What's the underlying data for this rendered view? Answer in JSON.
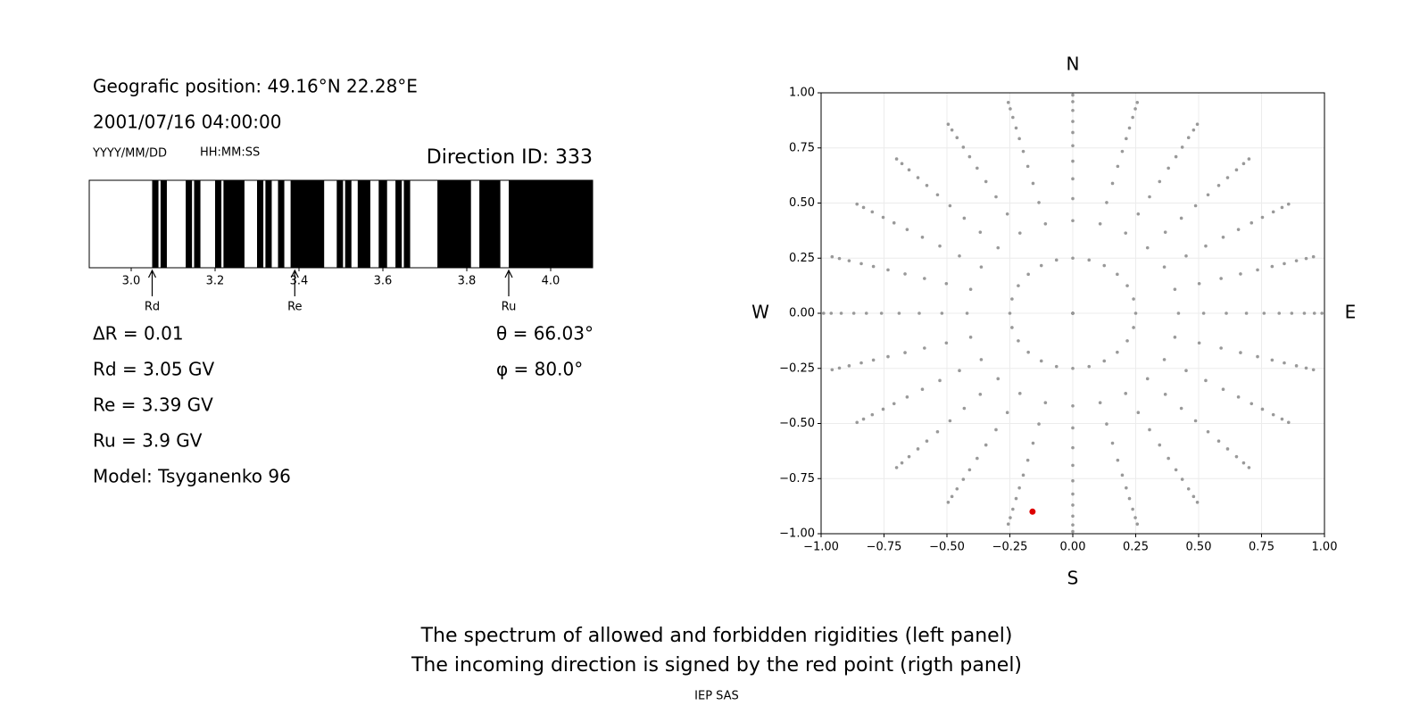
{
  "chart_data": [
    {
      "type": "spectrum",
      "info": [
        "Geografic position: 49.16°N 22.28°E",
        "2001/07/16 04:00:00"
      ],
      "format_labels": [
        "YYYY/MM/DD",
        "HH:MM:SS"
      ],
      "direction": "Direction ID: 333",
      "params_left": [
        "ΔR = 0.01",
        "Rd = 3.05 GV",
        "Re = 3.39 GV",
        "Ru = 3.9 GV",
        "Model: Tsyganenko 96"
      ],
      "params_right": [
        "θ = 66.03°",
        "φ = 80.0°"
      ],
      "xlim": [
        2.9,
        4.1
      ],
      "xticks": [
        {
          "value": 3,
          "label": "3.0"
        },
        {
          "value": 3.2,
          "label": "3.2"
        },
        {
          "value": 3.4,
          "label": "3.4"
        },
        {
          "value": 3.6,
          "label": "3.6"
        },
        {
          "value": 3.8,
          "label": "3.8"
        },
        {
          "value": 4,
          "label": "4.0"
        }
      ],
      "color": "#000000",
      "forbidden": [
        [
          3.05,
          3.065
        ],
        [
          3.07,
          3.085
        ],
        [
          3.13,
          3.145
        ],
        [
          3.15,
          3.165
        ],
        [
          3.2,
          3.215
        ],
        [
          3.22,
          3.27
        ],
        [
          3.3,
          3.315
        ],
        [
          3.32,
          3.335
        ],
        [
          3.35,
          3.365
        ],
        [
          3.38,
          3.46
        ],
        [
          3.49,
          3.505
        ],
        [
          3.51,
          3.525
        ],
        [
          3.54,
          3.57
        ],
        [
          3.59,
          3.61
        ],
        [
          3.63,
          3.645
        ],
        [
          3.65,
          3.665
        ],
        [
          3.73,
          3.81
        ],
        [
          3.83,
          3.88
        ],
        [
          3.9,
          4.1
        ]
      ],
      "markers": [
        {
          "label": "Rd",
          "value": 3.05
        },
        {
          "label": "Re",
          "value": 3.39
        },
        {
          "label": "Ru",
          "value": 3.9
        }
      ]
    },
    {
      "type": "polar-scatter",
      "compass": {
        "top": "N",
        "bottom": "S",
        "left": "W",
        "right": "E"
      },
      "xlim": [
        -1,
        1
      ],
      "ylim": [
        -1,
        1
      ],
      "xticks": [
        {
          "value": -1,
          "label": "−1.00"
        },
        {
          "value": -0.75,
          "label": "−0.75"
        },
        {
          "value": -0.5,
          "label": "−0.50"
        },
        {
          "value": -0.25,
          "label": "−0.25"
        },
        {
          "value": 0,
          "label": "0.00"
        },
        {
          "value": 0.25,
          "label": "0.25"
        },
        {
          "value": 0.5,
          "label": "0.50"
        },
        {
          "value": 0.75,
          "label": "0.75"
        },
        {
          "value": 1,
          "label": "1.00"
        }
      ],
      "yticks": [
        {
          "value": -1,
          "label": "−1.00"
        },
        {
          "value": -0.75,
          "label": "−0.75"
        },
        {
          "value": -0.5,
          "label": "−0.50"
        },
        {
          "value": -0.25,
          "label": "−0.25"
        },
        {
          "value": 0,
          "label": "0.00"
        },
        {
          "value": 0.25,
          "label": "0.25"
        },
        {
          "value": 0.5,
          "label": "0.50"
        },
        {
          "value": 0.75,
          "label": "0.75"
        },
        {
          "value": 1,
          "label": "1.00"
        }
      ],
      "grid": true,
      "color": "#999999",
      "radii": [
        0,
        0.25,
        0.42,
        0.52,
        0.61,
        0.69,
        0.76,
        0.82,
        0.87,
        0.92,
        0.96,
        0.99
      ],
      "azimuths": [
        0,
        15,
        30,
        45,
        60,
        75,
        90,
        105,
        120,
        135,
        150,
        165,
        180,
        195,
        210,
        225,
        240,
        255,
        270,
        285,
        300,
        315,
        330,
        345
      ],
      "highlight": {
        "x": -0.16,
        "y": -0.9,
        "color": "#dd0000"
      }
    }
  ],
  "footer": [
    "The spectrum of allowed and forbidden rigidities (left panel)",
    "The incoming direction is signed by the red point (rigth panel)"
  ],
  "credit": "IEP SAS"
}
